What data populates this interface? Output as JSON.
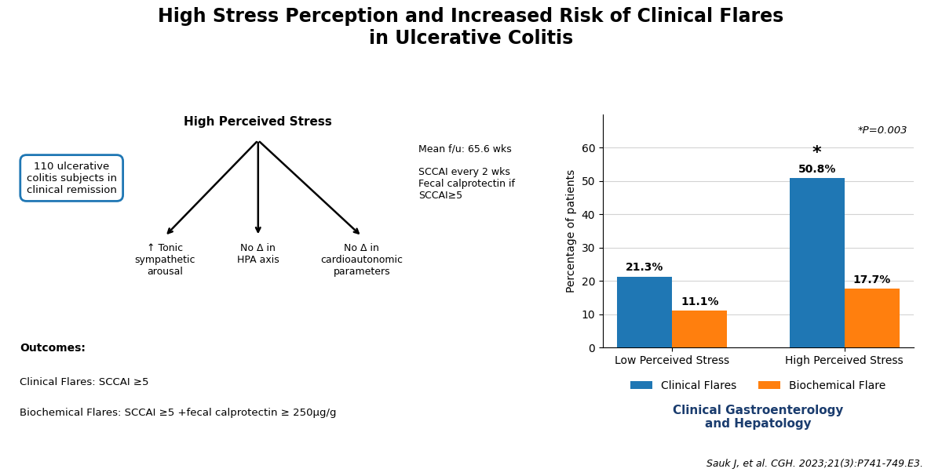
{
  "chart_data": {
    "type": "bar",
    "title": "High Stress Perception and Increased Risk of Clinical Flares\nin Ulcerative Colitis",
    "categories": [
      "Low Perceived Stress",
      "High Perceived Stress"
    ],
    "series": [
      {
        "name": "Clinical Flares",
        "values": [
          21.3,
          50.8
        ],
        "value_labels": [
          "21.3%",
          "50.8%"
        ]
      },
      {
        "name": "Biochemical Flare",
        "values": [
          11.1,
          17.7
        ],
        "value_labels": [
          "11.1%",
          "17.7%"
        ]
      }
    ],
    "ylabel": "Percentage of patients",
    "ylim": [
      0,
      70
    ],
    "yticks": [
      0,
      10,
      20,
      30,
      40,
      50,
      60
    ],
    "grid": true,
    "legend": "lower center",
    "data_labels": true,
    "annotations": [
      {
        "text": "*",
        "category": "High Perceived Stress",
        "series": "Clinical Flares"
      },
      {
        "text": "*P=0.003"
      },
      {
        "text": "110 ulcerative\ncolitis subjects in\nclinical remission"
      },
      {
        "text": "High Perceived Stress"
      },
      {
        "text": "↑ Tonic\nsympathetic\narousal"
      },
      {
        "text": "No Δ in\nHPA axis"
      },
      {
        "text": "No Δ in\ncardioautonomic\nparameters"
      },
      {
        "text": "Mean f/u: 65.6 wks\n\nSCCAI every 2 wks\nFecal calprotectin if\nSCCAI≥5"
      },
      {
        "text": "Outcomes:"
      },
      {
        "text": "Clinical Flares: SCCAI ≥5"
      },
      {
        "text": "Biochemical Flares: SCCAI ≥5 +fecal calprotectin ≥ 250μg/g"
      },
      {
        "text": "Clinical Gastroenterology\nand Hepatology"
      },
      {
        "text": "Sauk J, et al. CGH. 2023;21(3):P741-749.E3."
      }
    ]
  }
}
